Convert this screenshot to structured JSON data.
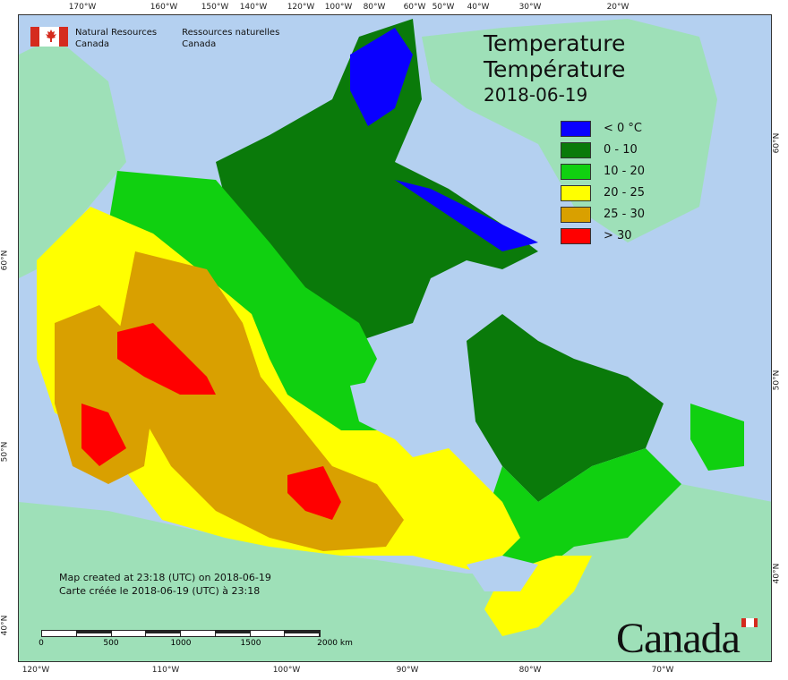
{
  "title": {
    "en": "Temperature",
    "fr": "Température",
    "date": "2018-06-19"
  },
  "agency": {
    "en_line1": "Natural Resources",
    "en_line2": "Canada",
    "fr_line1": "Ressources naturelles",
    "fr_line2": "Canada"
  },
  "legend": [
    {
      "label": "< 0 °C",
      "color": "#0a00ff"
    },
    {
      "label": "0 - 10",
      "color": "#0a7a0a"
    },
    {
      "label": "10 - 20",
      "color": "#10d010"
    },
    {
      "label": "20 - 25",
      "color": "#ffff00"
    },
    {
      "label": "25 - 30",
      "color": "#d9a000"
    },
    {
      "label": "> 30",
      "color": "#ff0000"
    }
  ],
  "credit": {
    "en": "Map created at 23:18 (UTC) on 2018-06-19",
    "fr": "Carte créée le 2018-06-19 (UTC) à 23:18"
  },
  "scale": {
    "labels": [
      "0",
      "500",
      "1000",
      "1500",
      "2000 km"
    ]
  },
  "ticks": {
    "top": [
      "170°W",
      "160°W",
      "150°W",
      "140°W",
      "120°W",
      "100°W",
      "80°W",
      "60°W",
      "50°W",
      "40°W",
      "30°W",
      "20°W"
    ],
    "bottom": [
      "120°W",
      "110°W",
      "100°W",
      "90°W",
      "80°W",
      "70°W"
    ],
    "left": [
      "60°N",
      "50°N",
      "40°N"
    ],
    "right": [
      "60°N",
      "50°N",
      "40°N"
    ]
  },
  "wordmark": "Canada",
  "colors": {
    "ocean": "#b4d0f0",
    "other_land": "#9ee0b8",
    "lake": "#b4d0f0"
  }
}
